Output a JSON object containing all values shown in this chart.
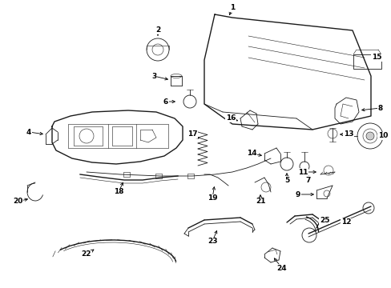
{
  "bg_color": "#ffffff",
  "line_color": "#1a1a1a",
  "lw_main": 1.0,
  "lw_thin": 0.6,
  "lw_hair": 0.4,
  "label_fontsize": 7.0
}
